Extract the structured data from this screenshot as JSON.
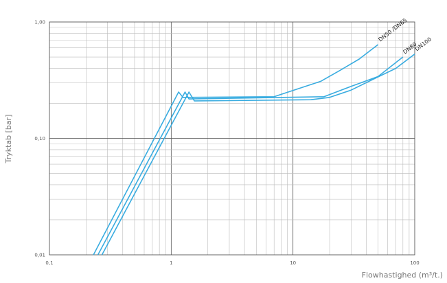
{
  "chart_data": {
    "type": "line",
    "title": "",
    "xlabel": "Flowhastighed (m³/t.)",
    "ylabel": "Tryktab [bar]",
    "x_scale": "log",
    "y_scale": "log",
    "xlim": [
      0.1,
      100
    ],
    "ylim": [
      0.01,
      1.0
    ],
    "grid": true,
    "x_ticks": [
      {
        "value": 0.1,
        "label": "0,1"
      },
      {
        "value": 1,
        "label": "1"
      },
      {
        "value": 10,
        "label": "10"
      },
      {
        "value": 100,
        "label": "100"
      }
    ],
    "y_ticks": [
      {
        "value": 0.01,
        "label": "0,01"
      },
      {
        "value": 0.1,
        "label": "0,10"
      },
      {
        "value": 1.0,
        "label": "1,00"
      }
    ],
    "series": [
      {
        "name": "DN50 /DN65",
        "points": [
          [
            0.23,
            0.01
          ],
          [
            1.15,
            0.25
          ],
          [
            1.25,
            0.225
          ],
          [
            7.0,
            0.228
          ],
          [
            17.0,
            0.31
          ],
          [
            25.0,
            0.39
          ],
          [
            35.0,
            0.48
          ],
          [
            50.0,
            0.64
          ]
        ]
      },
      {
        "name": "DN80",
        "points": [
          [
            0.25,
            0.01
          ],
          [
            1.3,
            0.25
          ],
          [
            1.4,
            0.218
          ],
          [
            18.0,
            0.228
          ],
          [
            30.0,
            0.28
          ],
          [
            50.0,
            0.34
          ],
          [
            80.0,
            0.5
          ]
        ]
      },
      {
        "name": "DN100",
        "points": [
          [
            0.27,
            0.01
          ],
          [
            1.4,
            0.25
          ],
          [
            1.55,
            0.21
          ],
          [
            14.0,
            0.215
          ],
          [
            20.0,
            0.225
          ],
          [
            30.0,
            0.26
          ],
          [
            45.0,
            0.32
          ],
          [
            70.0,
            0.4
          ],
          [
            100.0,
            0.53
          ]
        ]
      }
    ],
    "colors": {
      "line": "#39ace0",
      "grid": "#bbbbbb",
      "minor_grid": "#d3d3d3",
      "frame": "#555555"
    }
  }
}
